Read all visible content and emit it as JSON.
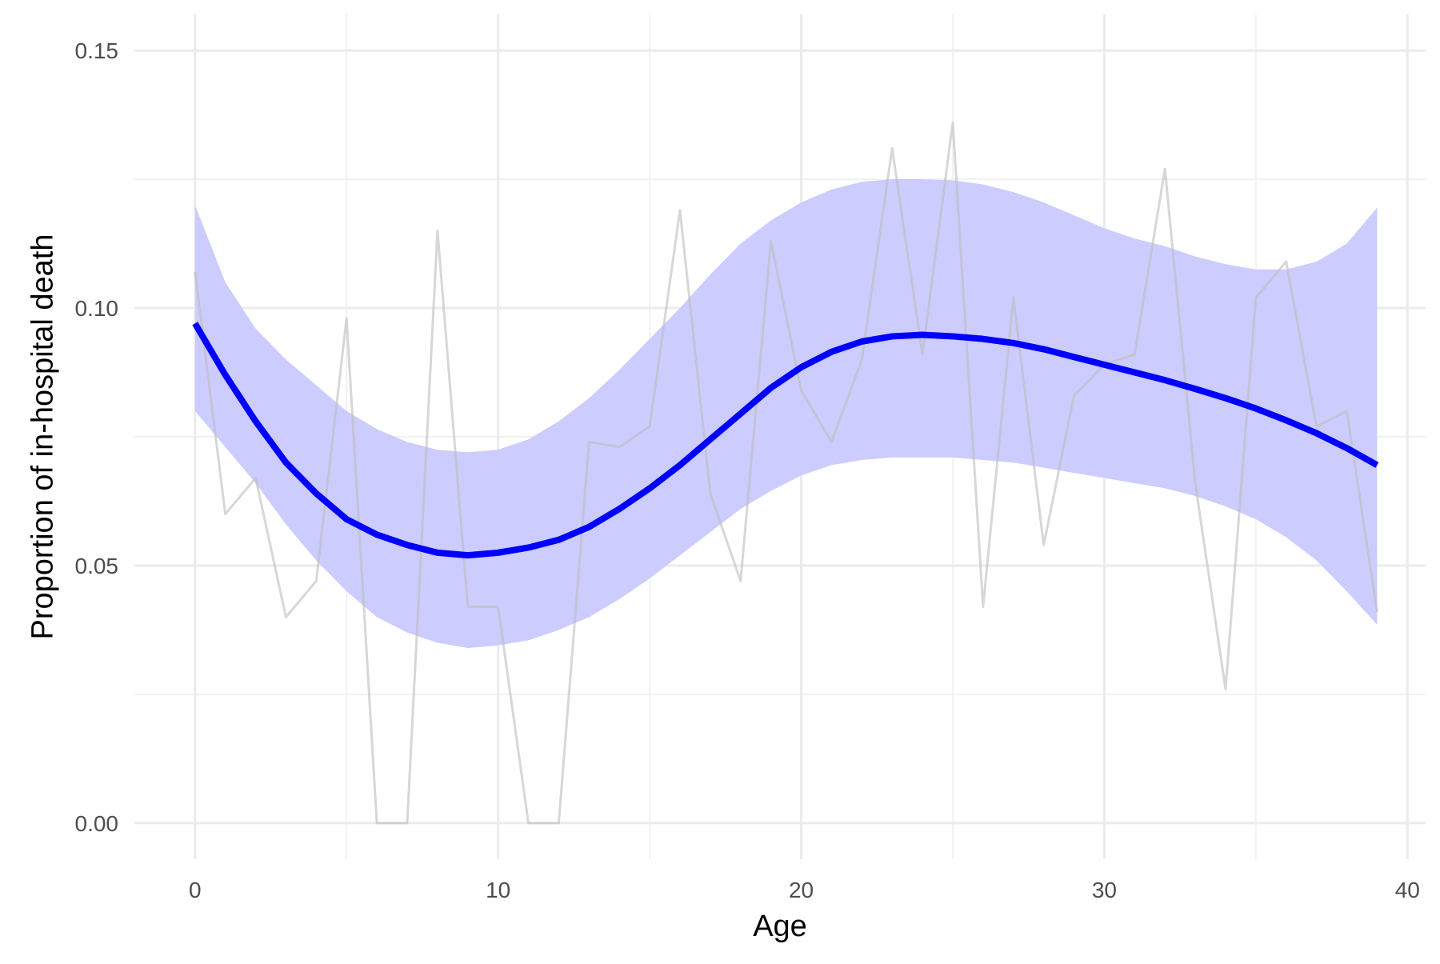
{
  "chart_data": {
    "type": "line",
    "title": "",
    "xlabel": "Age",
    "ylabel": "Proportion of in-hospital death",
    "xlim": [
      -2,
      40.6
    ],
    "ylim": [
      -0.007,
      0.157
    ],
    "x_ticks": [
      0,
      10,
      20,
      30,
      40
    ],
    "x_minor_ticks": [
      5,
      15,
      25,
      35
    ],
    "y_ticks": [
      0.0,
      0.05,
      0.1,
      0.15
    ],
    "y_tick_labels": [
      "0.00",
      "0.05",
      "0.10",
      "0.15"
    ],
    "y_minor_ticks": [
      0.025,
      0.075,
      0.125
    ],
    "grid": true,
    "legend": "none",
    "colors": {
      "observed": "#bdbdbd",
      "smooth": "#0000ff",
      "ribbon": "#ccccff",
      "grid": "#ebebeb"
    },
    "series": [
      {
        "kind": "observed",
        "x": [
          0,
          1,
          2,
          3,
          4,
          5,
          6,
          7,
          8,
          9,
          10,
          11,
          12,
          13,
          14,
          15,
          16,
          17,
          18,
          19,
          20,
          21,
          22,
          23,
          24,
          25,
          26,
          27,
          28,
          29,
          30,
          31,
          32,
          33,
          34,
          35,
          36,
          37,
          38,
          39
        ],
        "values": [
          0.107,
          0.06,
          0.067,
          0.04,
          0.047,
          0.098,
          0.0,
          0.0,
          0.115,
          0.042,
          0.042,
          0.0,
          0.0,
          0.074,
          0.073,
          0.077,
          0.119,
          0.064,
          0.047,
          0.113,
          0.084,
          0.074,
          0.09,
          0.131,
          0.091,
          0.136,
          0.042,
          0.102,
          0.054,
          0.083,
          0.089,
          0.091,
          0.127,
          0.066,
          0.026,
          0.102,
          0.109,
          0.077,
          0.08,
          0.041
        ]
      },
      {
        "kind": "smooth",
        "x": [
          0,
          1,
          2,
          3,
          4,
          5,
          6,
          7,
          8,
          9,
          10,
          11,
          12,
          13,
          14,
          15,
          16,
          17,
          18,
          19,
          20,
          21,
          22,
          23,
          24,
          25,
          26,
          27,
          28,
          29,
          30,
          31,
          32,
          33,
          34,
          35,
          36,
          37,
          38,
          39
        ],
        "values": [
          0.097,
          0.087,
          0.078,
          0.07,
          0.064,
          0.059,
          0.056,
          0.054,
          0.0525,
          0.052,
          0.0525,
          0.0535,
          0.055,
          0.0575,
          0.061,
          0.065,
          0.0695,
          0.0745,
          0.0795,
          0.0845,
          0.0885,
          0.0915,
          0.0935,
          0.0945,
          0.0948,
          0.0945,
          0.094,
          0.0932,
          0.092,
          0.0905,
          0.089,
          0.0875,
          0.086,
          0.0843,
          0.0825,
          0.0805,
          0.0782,
          0.0757,
          0.0728,
          0.0695
        ],
        "lower": [
          0.08,
          0.073,
          0.066,
          0.058,
          0.051,
          0.045,
          0.04,
          0.037,
          0.035,
          0.034,
          0.0345,
          0.0355,
          0.0375,
          0.04,
          0.0435,
          0.0475,
          0.052,
          0.0565,
          0.061,
          0.0645,
          0.0675,
          0.0695,
          0.0705,
          0.071,
          0.071,
          0.071,
          0.0705,
          0.07,
          0.069,
          0.068,
          0.067,
          0.066,
          0.065,
          0.0635,
          0.0615,
          0.059,
          0.0555,
          0.051,
          0.045,
          0.0385
        ],
        "upper": [
          0.12,
          0.105,
          0.096,
          0.09,
          0.085,
          0.08,
          0.0765,
          0.074,
          0.0725,
          0.072,
          0.0725,
          0.0745,
          0.078,
          0.0825,
          0.088,
          0.094,
          0.1,
          0.1065,
          0.1125,
          0.117,
          0.1205,
          0.123,
          0.1245,
          0.125,
          0.125,
          0.1248,
          0.124,
          0.1225,
          0.1205,
          0.118,
          0.1155,
          0.1135,
          0.112,
          0.11,
          0.1085,
          0.1075,
          0.1075,
          0.109,
          0.1125,
          0.1195
        ]
      }
    ]
  }
}
